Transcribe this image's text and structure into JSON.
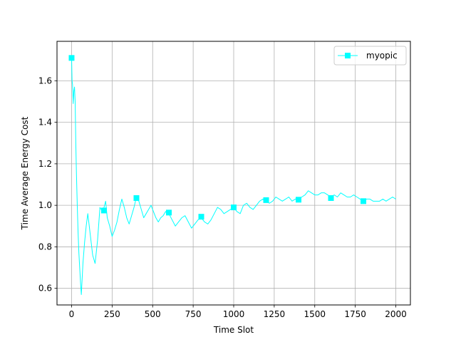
{
  "chart_data": {
    "type": "line",
    "title": "",
    "xlabel": "Time Slot",
    "ylabel": "Time Average Energy Cost",
    "xlim": [
      -90,
      2090
    ],
    "ylim": [
      0.52,
      1.79
    ],
    "xticks": [
      0,
      250,
      500,
      750,
      1000,
      1250,
      1500,
      1750,
      2000
    ],
    "yticks": [
      0.6,
      0.8,
      1.0,
      1.2,
      1.4,
      1.6
    ],
    "xtick_labels": [
      "0",
      "250",
      "500",
      "750",
      "1000",
      "1250",
      "1500",
      "1750",
      "2000"
    ],
    "ytick_labels": [
      "0.6",
      "0.8",
      "1.0",
      "1.2",
      "1.4",
      "1.6"
    ],
    "grid": true,
    "legend_position": "top-right",
    "series": [
      {
        "name": "myopic",
        "color": "#00ffff",
        "marker": "square",
        "x": [
          0,
          3,
          6,
          10,
          14,
          18,
          22,
          26,
          30,
          35,
          40,
          45,
          50,
          55,
          60,
          70,
          80,
          90,
          100,
          115,
          130,
          145,
          160,
          175,
          190,
          200,
          210,
          220,
          235,
          250,
          265,
          280,
          295,
          310,
          325,
          340,
          355,
          370,
          385,
          400,
          415,
          430,
          445,
          460,
          475,
          490,
          505,
          520,
          535,
          550,
          565,
          580,
          600,
          620,
          640,
          660,
          680,
          700,
          720,
          740,
          760,
          780,
          800,
          820,
          840,
          860,
          880,
          900,
          920,
          940,
          960,
          980,
          1000,
          1020,
          1040,
          1060,
          1080,
          1100,
          1120,
          1140,
          1160,
          1180,
          1200,
          1220,
          1240,
          1260,
          1280,
          1300,
          1320,
          1340,
          1360,
          1380,
          1400,
          1420,
          1440,
          1460,
          1480,
          1500,
          1520,
          1540,
          1560,
          1580,
          1600,
          1620,
          1640,
          1660,
          1680,
          1700,
          1720,
          1740,
          1760,
          1780,
          1800,
          1820,
          1840,
          1860,
          1880,
          1900,
          1920,
          1940,
          1960,
          1980,
          2000
        ],
        "y": [
          1.71,
          1.6,
          1.58,
          1.49,
          1.55,
          1.57,
          1.5,
          1.3,
          1.15,
          1.0,
          0.87,
          0.77,
          0.7,
          0.63,
          0.57,
          0.72,
          0.82,
          0.9,
          0.96,
          0.86,
          0.76,
          0.72,
          0.83,
          0.99,
          0.97,
          0.99,
          1.02,
          0.94,
          0.9,
          0.85,
          0.88,
          0.92,
          0.98,
          1.03,
          0.99,
          0.94,
          0.91,
          0.95,
          0.99,
          1.04,
          1.02,
          0.98,
          0.94,
          0.96,
          0.98,
          1.0,
          0.97,
          0.94,
          0.92,
          0.94,
          0.95,
          0.97,
          0.96,
          0.93,
          0.9,
          0.92,
          0.94,
          0.95,
          0.92,
          0.89,
          0.91,
          0.93,
          0.94,
          0.92,
          0.91,
          0.93,
          0.96,
          0.99,
          0.98,
          0.96,
          0.97,
          0.98,
          0.99,
          0.97,
          0.96,
          1.0,
          1.01,
          0.99,
          0.98,
          1.0,
          1.02,
          1.03,
          1.02,
          1.01,
          1.02,
          1.04,
          1.03,
          1.02,
          1.03,
          1.04,
          1.02,
          1.03,
          1.03,
          1.04,
          1.05,
          1.07,
          1.06,
          1.05,
          1.05,
          1.06,
          1.06,
          1.05,
          1.04,
          1.05,
          1.04,
          1.06,
          1.05,
          1.04,
          1.04,
          1.05,
          1.04,
          1.03,
          1.02,
          1.03,
          1.03,
          1.02,
          1.02,
          1.02,
          1.03,
          1.02,
          1.03,
          1.04,
          1.03
        ]
      }
    ],
    "markers": [
      {
        "x": 0,
        "y": 1.71
      },
      {
        "x": 200,
        "y": 0.975
      },
      {
        "x": 400,
        "y": 1.035
      },
      {
        "x": 600,
        "y": 0.965
      },
      {
        "x": 800,
        "y": 0.945
      },
      {
        "x": 1000,
        "y": 0.99
      },
      {
        "x": 1200,
        "y": 1.025
      },
      {
        "x": 1400,
        "y": 1.027
      },
      {
        "x": 1600,
        "y": 1.035
      },
      {
        "x": 1800,
        "y": 1.02
      }
    ]
  }
}
